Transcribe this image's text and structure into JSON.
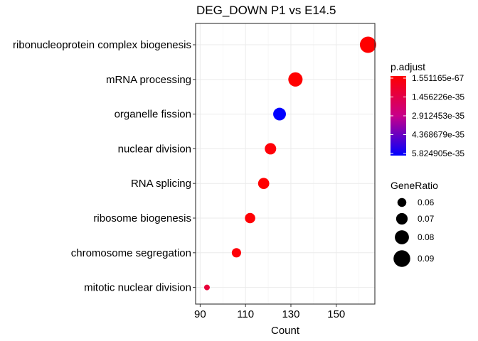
{
  "chart_data": {
    "type": "scatter",
    "title": "DEG_DOWN P1 vs E14.5",
    "xlabel": "Count",
    "ylabel": "",
    "xlim": [
      88,
      167
    ],
    "xticks": [
      90,
      110,
      130,
      150
    ],
    "grid": true,
    "categories": [
      "ribonucleoprotein complex biogenesis",
      "mRNA processing",
      "organelle fission",
      "nuclear division",
      "RNA splicing",
      "ribosome biogenesis",
      "chromosome segregation",
      "mitotic nuclear division"
    ],
    "points": [
      {
        "term": "ribonucleoprotein complex biogenesis",
        "count": 164,
        "gene_ratio": 0.093,
        "color": "#FF0000"
      },
      {
        "term": "mRNA processing",
        "count": 132,
        "gene_ratio": 0.085,
        "color": "#FF0000"
      },
      {
        "term": "organelle fission",
        "count": 125,
        "gene_ratio": 0.079,
        "color": "#0000FF"
      },
      {
        "term": "nuclear division",
        "count": 121,
        "gene_ratio": 0.074,
        "color": "#FF0008"
      },
      {
        "term": "RNA splicing",
        "count": 118,
        "gene_ratio": 0.073,
        "color": "#FF0000"
      },
      {
        "term": "ribosome biogenesis",
        "count": 112,
        "gene_ratio": 0.07,
        "color": "#FF0004"
      },
      {
        "term": "chromosome segregation",
        "count": 106,
        "gene_ratio": 0.066,
        "color": "#FF0008"
      },
      {
        "term": "mitotic nuclear division",
        "count": 93,
        "gene_ratio": 0.052,
        "color": "#E8003A"
      }
    ],
    "color_legend": {
      "title": "p.adjust",
      "labels": [
        "1.551165e-67",
        "1.456226e-35",
        "2.912453e-35",
        "4.368679e-35",
        "5.824905e-35"
      ],
      "gradient": [
        "#FF0000",
        "#0000FF"
      ]
    },
    "size_legend": {
      "title": "GeneRatio",
      "labels": [
        "0.06",
        "0.07",
        "0.08",
        "0.09"
      ],
      "values": [
        0.06,
        0.07,
        0.08,
        0.09
      ]
    }
  }
}
